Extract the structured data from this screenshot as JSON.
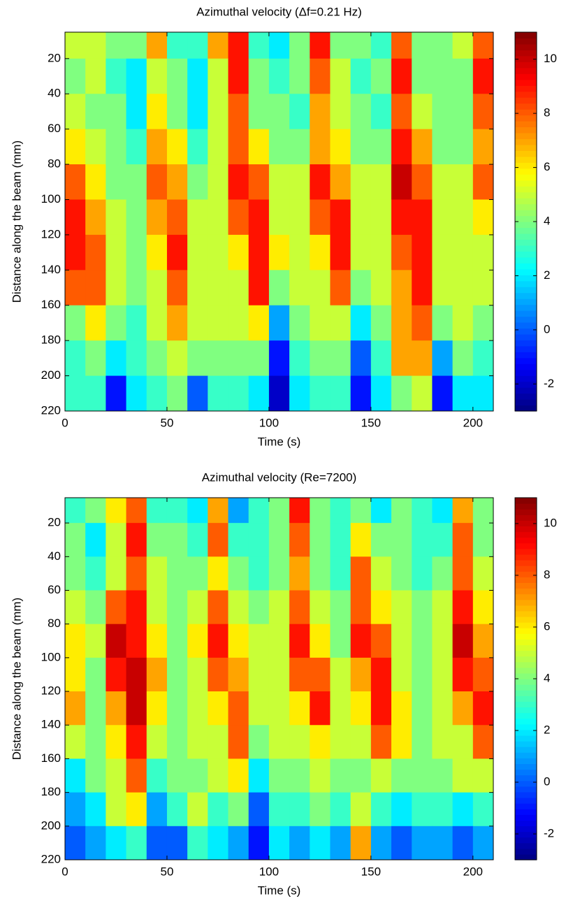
{
  "chart_data": [
    {
      "type": "heatmap",
      "title": "Azimuthal velocity (Δf=0.21 Hz)",
      "xlabel": "Time (s)",
      "ylabel": "Distance along the beam (mm)",
      "colormap": "jet",
      "x": [
        5,
        15,
        25,
        35,
        45,
        55,
        65,
        75,
        85,
        95,
        105,
        115,
        125,
        135,
        145,
        155,
        165,
        175,
        185,
        195,
        205
      ],
      "y": [
        10,
        30,
        50,
        70,
        90,
        110,
        130,
        150,
        170,
        190,
        210
      ],
      "z": [
        [
          5,
          5,
          4,
          4,
          7,
          3,
          3,
          7,
          9,
          3,
          2,
          4,
          9,
          4,
          4,
          3,
          8,
          4,
          4,
          5,
          8
        ],
        [
          4,
          5,
          3,
          2,
          5,
          4,
          2,
          5,
          9,
          4,
          3,
          4,
          8,
          5,
          3,
          4,
          9,
          4,
          4,
          4,
          9
        ],
        [
          5,
          4,
          4,
          2,
          6,
          4,
          2,
          5,
          8,
          4,
          4,
          3,
          7,
          5,
          4,
          3,
          8,
          5,
          4,
          4,
          8
        ],
        [
          6,
          5,
          4,
          3,
          7,
          6,
          3,
          5,
          8,
          6,
          4,
          4,
          7,
          6,
          4,
          4,
          9,
          7,
          4,
          4,
          7
        ],
        [
          8,
          6,
          4,
          4,
          8,
          7,
          4,
          5,
          9,
          8,
          5,
          5,
          9,
          7,
          5,
          5,
          10,
          8,
          5,
          5,
          8
        ],
        [
          9,
          7,
          5,
          4,
          7,
          8,
          5,
          5,
          8,
          9,
          5,
          5,
          8,
          9,
          5,
          5,
          9,
          9,
          5,
          5,
          6
        ],
        [
          9,
          8,
          5,
          4,
          6,
          9,
          5,
          5,
          6,
          9,
          6,
          5,
          6,
          9,
          5,
          5,
          8,
          9,
          5,
          5,
          5
        ],
        [
          8,
          8,
          5,
          4,
          5,
          8,
          5,
          5,
          5,
          9,
          4,
          5,
          5,
          8,
          4,
          5,
          7,
          9,
          5,
          5,
          5
        ],
        [
          4,
          6,
          4,
          3,
          5,
          7,
          5,
          5,
          5,
          6,
          1,
          4,
          5,
          5,
          2,
          4,
          7,
          8,
          4,
          5,
          4
        ],
        [
          3,
          4,
          2,
          3,
          4,
          5,
          4,
          4,
          4,
          4,
          -1,
          3,
          4,
          4,
          0,
          3,
          7,
          7,
          1,
          4,
          3
        ],
        [
          3,
          3,
          -1,
          2,
          3,
          4,
          0,
          3,
          3,
          2,
          -2,
          2,
          3,
          3,
          -1,
          2,
          4,
          5,
          -1,
          2,
          2
        ]
      ],
      "xlim": [
        0,
        210
      ],
      "xticks": [
        0,
        50,
        100,
        150,
        200
      ],
      "ylim": [
        220,
        5
      ],
      "yticks": [
        20,
        40,
        60,
        80,
        100,
        120,
        140,
        160,
        180,
        200,
        220
      ],
      "clim": [
        -3,
        11
      ],
      "cticks": [
        -2,
        0,
        2,
        4,
        6,
        8,
        10
      ]
    },
    {
      "type": "heatmap",
      "title": "Azimuthal velocity (Re=7200)",
      "xlabel": "Time (s)",
      "ylabel": "Distance along the beam (mm)",
      "colormap": "jet",
      "x": [
        5,
        15,
        25,
        35,
        45,
        55,
        65,
        75,
        85,
        95,
        105,
        115,
        125,
        135,
        145,
        155,
        165,
        175,
        185,
        195,
        205
      ],
      "y": [
        10,
        30,
        50,
        70,
        90,
        110,
        130,
        150,
        170,
        190,
        210
      ],
      "z": [
        [
          3,
          4,
          6,
          8,
          3,
          3,
          2,
          7,
          1,
          3,
          4,
          9,
          4,
          3,
          4,
          2,
          4,
          3,
          2,
          7,
          4
        ],
        [
          4,
          2,
          5,
          9,
          4,
          4,
          3,
          8,
          3,
          3,
          4,
          8,
          4,
          3,
          6,
          4,
          4,
          3,
          3,
          8,
          4
        ],
        [
          4,
          3,
          5,
          8,
          5,
          4,
          4,
          6,
          4,
          3,
          4,
          7,
          4,
          3,
          8,
          5,
          4,
          3,
          4,
          8,
          5
        ],
        [
          5,
          4,
          8,
          9,
          5,
          4,
          5,
          8,
          5,
          4,
          5,
          8,
          5,
          4,
          8,
          6,
          5,
          4,
          5,
          9,
          6
        ],
        [
          6,
          5,
          10,
          9,
          6,
          4,
          6,
          9,
          6,
          5,
          5,
          9,
          6,
          4,
          9,
          8,
          5,
          4,
          5,
          10,
          7
        ],
        [
          6,
          4,
          9,
          10,
          7,
          4,
          5,
          8,
          7,
          5,
          5,
          8,
          8,
          5,
          7,
          9,
          5,
          4,
          5,
          9,
          8
        ],
        [
          7,
          4,
          7,
          10,
          6,
          4,
          5,
          6,
          8,
          5,
          5,
          6,
          9,
          5,
          6,
          9,
          6,
          4,
          5,
          7,
          9
        ],
        [
          5,
          4,
          6,
          9,
          5,
          4,
          5,
          5,
          8,
          4,
          5,
          5,
          6,
          5,
          5,
          8,
          6,
          4,
          5,
          5,
          8
        ],
        [
          2,
          4,
          5,
          8,
          3,
          4,
          4,
          5,
          6,
          2,
          4,
          4,
          5,
          4,
          4,
          5,
          4,
          4,
          4,
          5,
          5
        ],
        [
          1,
          2,
          5,
          6,
          1,
          3,
          5,
          3,
          4,
          0,
          3,
          3,
          4,
          3,
          5,
          3,
          2,
          3,
          3,
          2,
          3
        ],
        [
          0,
          1,
          2,
          3,
          0,
          0,
          3,
          2,
          1,
          -1,
          2,
          1,
          2,
          1,
          7,
          1,
          0,
          1,
          1,
          0,
          1
        ]
      ],
      "xlim": [
        0,
        210
      ],
      "xticks": [
        0,
        50,
        100,
        150,
        200
      ],
      "ylim": [
        220,
        5
      ],
      "yticks": [
        20,
        40,
        60,
        80,
        100,
        120,
        140,
        160,
        180,
        200,
        220
      ],
      "clim": [
        -3,
        11
      ],
      "cticks": [
        -2,
        0,
        2,
        4,
        6,
        8,
        10
      ]
    }
  ]
}
